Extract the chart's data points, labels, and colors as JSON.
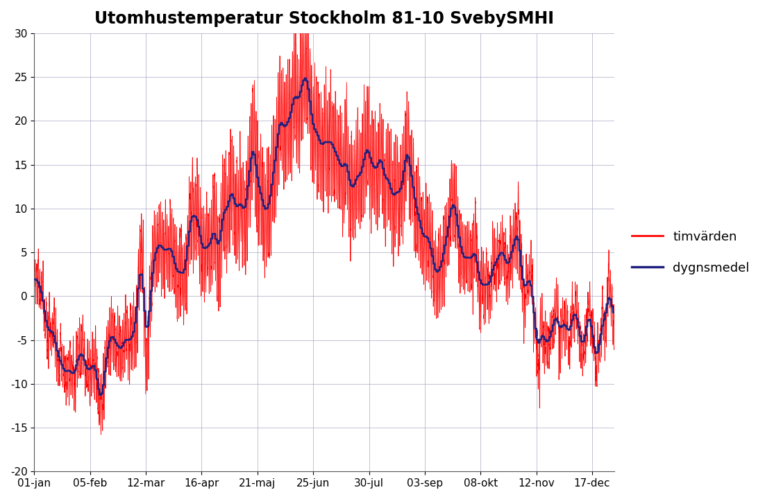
{
  "title": "Utomhustemperatur Stockholm 81-10 SvebySMHI",
  "title_fontsize": 17,
  "ylim": [
    -20,
    30
  ],
  "yticks": [
    -20,
    -15,
    -10,
    -5,
    0,
    5,
    10,
    15,
    20,
    25,
    30
  ],
  "x_tick_labels": [
    "01-jan",
    "05-feb",
    "12-mar",
    "16-apr",
    "21-maj",
    "25-jun",
    "30-jul",
    "03-sep",
    "08-okt",
    "12-nov",
    "17-dec"
  ],
  "x_tick_days": [
    0,
    35,
    70,
    105,
    140,
    175,
    210,
    245,
    280,
    315,
    350
  ],
  "red_color": "#FF0000",
  "blue_color": "#1F2080",
  "background_color": "#FFFFFF",
  "legend_labels": [
    "timvärden",
    "dygnsmedel"
  ],
  "grid_color": "#9999BB",
  "fig_width": 11.02,
  "fig_height": 7.2,
  "dpi": 100
}
